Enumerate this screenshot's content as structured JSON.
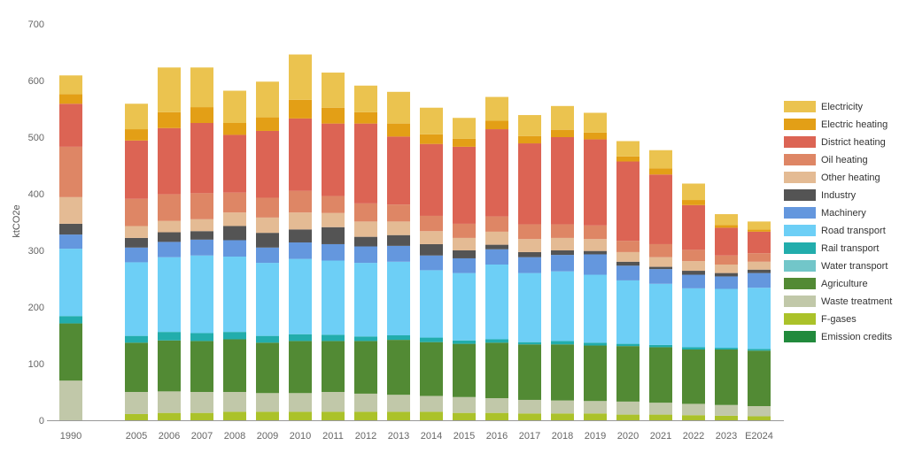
{
  "chart_data": {
    "type": "bar",
    "stacked": true,
    "title": "",
    "xlabel": "",
    "ylabel": "ktCO2e",
    "ylim": [
      0,
      700
    ],
    "yticks": [
      0,
      100,
      200,
      300,
      400,
      500,
      600,
      700
    ],
    "grid": false,
    "legend": "right",
    "categories": [
      "1990",
      "2005",
      "2006",
      "2007",
      "2008",
      "2009",
      "2010",
      "2011",
      "2012",
      "2013",
      "2014",
      "2015",
      "2016",
      "2017",
      "2018",
      "2019",
      "2020",
      "2021",
      "2022",
      "2023",
      "E2024"
    ],
    "series": [
      {
        "name": "Emission credits",
        "color": "#218a3c",
        "values": [
          0,
          0,
          0,
          0,
          0,
          0,
          0,
          0,
          0,
          0,
          0,
          0,
          0,
          0,
          0,
          0,
          0,
          0,
          0,
          0,
          0
        ]
      },
      {
        "name": "F-gases",
        "color": "#abc22a",
        "values": [
          0,
          11,
          13,
          13,
          15,
          15,
          15,
          15,
          15,
          15,
          15,
          13,
          13,
          12,
          12,
          12,
          10,
          10,
          9,
          8,
          7
        ]
      },
      {
        "name": "Waste treatment",
        "color": "#c1c8a9",
        "values": [
          70,
          39,
          38,
          37,
          35,
          33,
          33,
          35,
          32,
          30,
          28,
          28,
          26,
          24,
          23,
          22,
          23,
          21,
          20,
          19,
          18
        ]
      },
      {
        "name": "Agriculture",
        "color": "#528a34",
        "values": [
          101,
          87,
          90,
          90,
          93,
          89,
          92,
          90,
          93,
          97,
          95,
          94,
          98,
          98,
          99,
          98,
          98,
          98,
          96,
          98,
          98
        ]
      },
      {
        "name": "Water transport",
        "color": "#72c6c9",
        "values": [
          0,
          0,
          0,
          0,
          0,
          0,
          0,
          0,
          0,
          0,
          0,
          0,
          0,
          0,
          0,
          0,
          0,
          0,
          0,
          0,
          0
        ]
      },
      {
        "name": "Rail transport",
        "color": "#22adac",
        "values": [
          13,
          12,
          15,
          14,
          13,
          12,
          12,
          11,
          8,
          8,
          8,
          6,
          6,
          4,
          6,
          5,
          4,
          4,
          4,
          3,
          3
        ]
      },
      {
        "name": "Road transport",
        "color": "#6dcff6",
        "values": [
          119,
          130,
          132,
          137,
          133,
          129,
          133,
          131,
          130,
          130,
          119,
          119,
          132,
          122,
          123,
          120,
          112,
          108,
          104,
          104,
          108
        ]
      },
      {
        "name": "Machinery",
        "color": "#6497de",
        "values": [
          25,
          26,
          27,
          28,
          29,
          27,
          29,
          29,
          29,
          28,
          26,
          26,
          27,
          28,
          29,
          36,
          26,
          26,
          24,
          22,
          26
        ]
      },
      {
        "name": "Industry",
        "color": "#545454",
        "values": [
          19,
          17,
          17,
          15,
          25,
          26,
          23,
          30,
          17,
          19,
          20,
          14,
          8,
          9,
          8,
          6,
          7,
          4,
          7,
          6,
          6
        ]
      },
      {
        "name": "Other heating",
        "color": "#e4bb94",
        "values": [
          47,
          21,
          20,
          21,
          24,
          27,
          30,
          25,
          27,
          24,
          23,
          22,
          23,
          23,
          22,
          21,
          17,
          17,
          17,
          15,
          14
        ]
      },
      {
        "name": "Oil heating",
        "color": "#de8665",
        "values": [
          89,
          48,
          47,
          46,
          35,
          35,
          38,
          30,
          32,
          30,
          27,
          25,
          27,
          26,
          24,
          24,
          20,
          23,
          20,
          16,
          15
        ]
      },
      {
        "name": "District heating",
        "color": "#dc6454",
        "values": [
          76,
          103,
          117,
          124,
          102,
          118,
          128,
          128,
          141,
          120,
          127,
          136,
          154,
          143,
          154,
          152,
          140,
          123,
          79,
          49,
          38
        ]
      },
      {
        "name": "Electric heating",
        "color": "#e39f16",
        "values": [
          17,
          20,
          28,
          28,
          21,
          24,
          33,
          28,
          20,
          23,
          17,
          14,
          15,
          13,
          13,
          12,
          9,
          11,
          9,
          5,
          4
        ]
      },
      {
        "name": "Electricity",
        "color": "#ebc34f",
        "values": [
          33,
          45,
          79,
          70,
          57,
          63,
          80,
          62,
          47,
          56,
          47,
          37,
          42,
          37,
          42,
          35,
          27,
          32,
          29,
          19,
          14
        ]
      }
    ]
  }
}
